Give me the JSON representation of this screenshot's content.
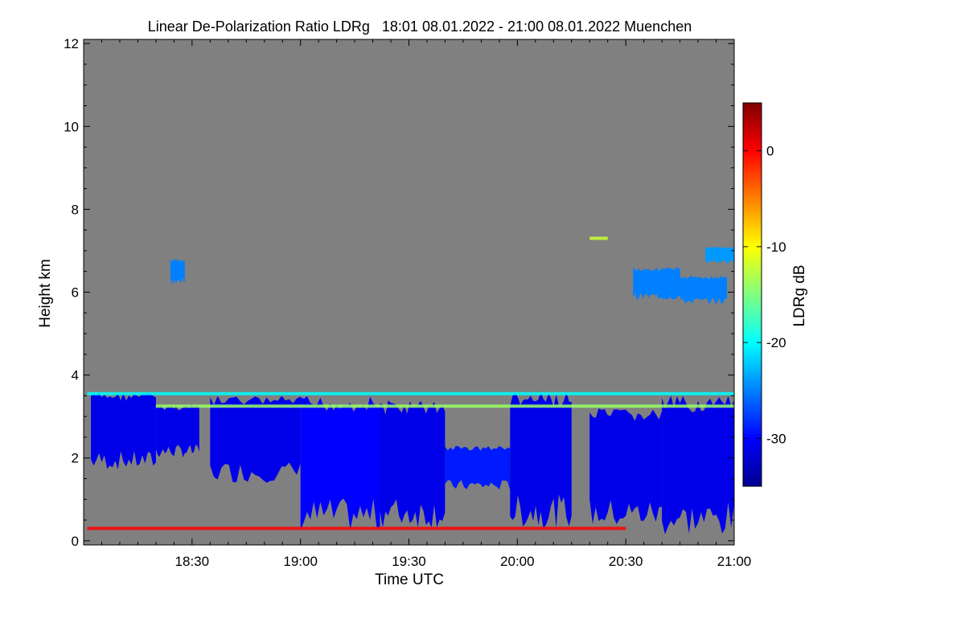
{
  "chart_data": {
    "type": "heatmap",
    "title": "Linear De-Polarization Ratio LDRg   18:01 08.01.2022 - 21:00 08.01.2022 Muenchen",
    "xlabel": "Time UTC",
    "ylabel": "Height km",
    "x_range_minutes_since_18_00": [
      1,
      180
    ],
    "ylim": [
      -0.1,
      12.1
    ],
    "x_ticks": [
      {
        "label": "18:30",
        "value": 30
      },
      {
        "label": "19:00",
        "value": 60
      },
      {
        "label": "19:30",
        "value": 90
      },
      {
        "label": "20:00",
        "value": 120
      },
      {
        "label": "20:30",
        "value": 150
      },
      {
        "label": "21:00",
        "value": 180
      }
    ],
    "y_ticks": [
      {
        "label": "0",
        "value": 0
      },
      {
        "label": "2",
        "value": 2
      },
      {
        "label": "4",
        "value": 4
      },
      {
        "label": "6",
        "value": 6
      },
      {
        "label": "8",
        "value": 8
      },
      {
        "label": "10",
        "value": 10
      },
      {
        "label": "12",
        "value": 12
      }
    ],
    "colorbar": {
      "label": "LDRg dB",
      "range": [
        -35,
        5
      ],
      "ticks": [
        {
          "label": "0",
          "value": 0
        },
        {
          "label": "-10",
          "value": -10
        },
        {
          "label": "-20",
          "value": -20
        },
        {
          "label": "-30",
          "value": -30
        }
      ],
      "colormap": [
        "#00008f",
        "#0000ff",
        "#0080ff",
        "#00ffff",
        "#80ff80",
        "#ffff00",
        "#ff8000",
        "#ff0000",
        "#800000"
      ]
    },
    "background_color": "#808080",
    "regions": [
      {
        "name": "low-cloud-a",
        "t": [
          2,
          20
        ],
        "h_bottom": 1.7,
        "h_top": 3.6,
        "ldr": -31
      },
      {
        "name": "low-cloud-b",
        "t": [
          20,
          32
        ],
        "h_bottom": 2.0,
        "h_top": 3.3,
        "ldr": -31
      },
      {
        "name": "main-cloud-a",
        "t": [
          35,
          60
        ],
        "h_bottom": 1.4,
        "h_top": 3.5,
        "ldr": -31
      },
      {
        "name": "main-cloud-b",
        "t": [
          60,
          82
        ],
        "h_bottom": 0.2,
        "h_top": 3.5,
        "ldr": -30
      },
      {
        "name": "main-cloud-c",
        "t": [
          82,
          100
        ],
        "h_bottom": 0.3,
        "h_top": 3.4,
        "ldr": -31
      },
      {
        "name": "mid-cloud",
        "t": [
          100,
          118
        ],
        "h_bottom": 1.2,
        "h_top": 2.3,
        "ldr": -29
      },
      {
        "name": "cloud-2000",
        "t": [
          118,
          135
        ],
        "h_bottom": 0.3,
        "h_top": 3.6,
        "ldr": -31
      },
      {
        "name": "cloud-2030-a",
        "t": [
          140,
          160
        ],
        "h_bottom": 0.3,
        "h_top": 3.2,
        "ldr": -31
      },
      {
        "name": "cloud-2030-b",
        "t": [
          160,
          180
        ],
        "h_bottom": 0.1,
        "h_top": 3.5,
        "ldr": -31
      },
      {
        "name": "cirrus-1826",
        "t": [
          24,
          28
        ],
        "h_bottom": 6.2,
        "h_top": 6.8,
        "ldr": -25
      },
      {
        "name": "cirrus-2030-a",
        "t": [
          152,
          165
        ],
        "h_bottom": 5.8,
        "h_top": 6.6,
        "ldr": -25
      },
      {
        "name": "cirrus-2030-b",
        "t": [
          165,
          178
        ],
        "h_bottom": 5.7,
        "h_top": 6.4,
        "ldr": -25
      },
      {
        "name": "cirrus-2040-top",
        "t": [
          172,
          180
        ],
        "h_bottom": 6.7,
        "h_top": 7.1,
        "ldr": -24
      }
    ],
    "bands": [
      {
        "name": "top-speckle-band",
        "t": [
          1,
          180
        ],
        "h": 3.55,
        "ldr": -20
      },
      {
        "name": "aerosol-band",
        "t": [
          20,
          180
        ],
        "h": 3.25,
        "ldr": -14
      },
      {
        "name": "surface-layer",
        "t": [
          1,
          150
        ],
        "h": 0.3,
        "ldr": 0
      },
      {
        "name": "thin-layer-2025",
        "t": [
          140,
          145
        ],
        "h": 7.3,
        "ldr": -12
      }
    ]
  }
}
